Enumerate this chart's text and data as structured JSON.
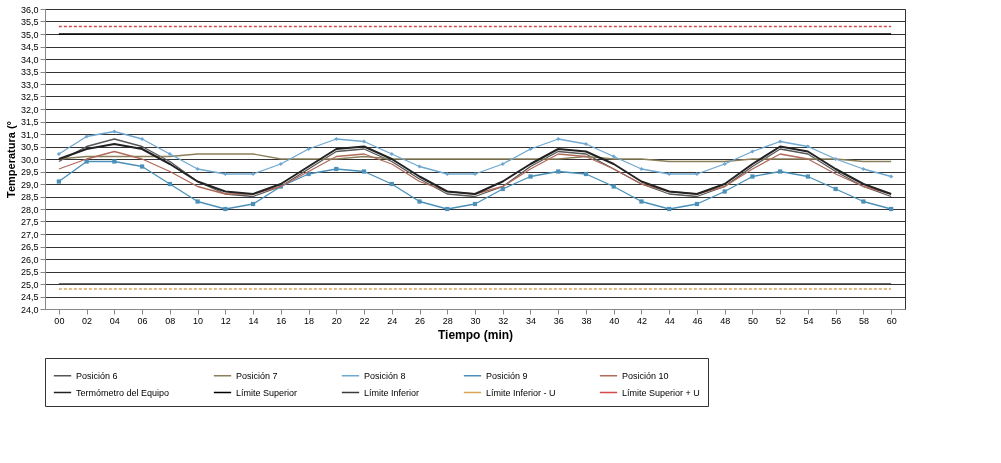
{
  "chart_data": {
    "type": "line",
    "xlabel": "Tiempo (min)",
    "ylabel": "Temperatura (°",
    "categories": [
      "00",
      "02",
      "04",
      "06",
      "08",
      "10",
      "12",
      "14",
      "16",
      "18",
      "20",
      "22",
      "24",
      "26",
      "28",
      "30",
      "32",
      "34",
      "36",
      "38",
      "40",
      "42",
      "44",
      "46",
      "48",
      "50",
      "52",
      "54",
      "56",
      "58",
      "60"
    ],
    "ylim": [
      24.0,
      36.0
    ],
    "yticks": [
      {
        "value": 24.0,
        "label": "24,0"
      },
      {
        "value": 24.5,
        "label": "24,5"
      },
      {
        "value": 25.0,
        "label": "25,0"
      },
      {
        "value": 25.5,
        "label": "25,5"
      },
      {
        "value": 26.0,
        "label": "26,0"
      },
      {
        "value": 26.5,
        "label": "26,5"
      },
      {
        "value": 27.0,
        "label": "27,0"
      },
      {
        "value": 27.5,
        "label": "27,5"
      },
      {
        "value": 28.0,
        "label": "28,0"
      },
      {
        "value": 28.5,
        "label": "28,5"
      },
      {
        "value": 29.0,
        "label": "29,0"
      },
      {
        "value": 29.5,
        "label": "29,5"
      },
      {
        "value": 30.0,
        "label": "30,0"
      },
      {
        "value": 30.5,
        "label": "30,5"
      },
      {
        "value": 31.0,
        "label": "31,0"
      },
      {
        "value": 31.5,
        "label": "31,5"
      },
      {
        "value": 32.0,
        "label": "32,0"
      },
      {
        "value": 32.5,
        "label": "32,5"
      },
      {
        "value": 33.0,
        "label": "33,0"
      },
      {
        "value": 33.5,
        "label": "33,5"
      },
      {
        "value": 34.0,
        "label": "34,0"
      },
      {
        "value": 34.5,
        "label": "34,5"
      },
      {
        "value": 35.0,
        "label": "35,0"
      },
      {
        "value": 35.5,
        "label": "35,5"
      },
      {
        "value": 36.0,
        "label": "36,0"
      }
    ],
    "grid": "y",
    "legend": "bottom",
    "series": [
      {
        "name": "Posición 6",
        "color": "#555555",
        "line_style": "solid",
        "marker": "none",
        "values": [
          29.9,
          30.5,
          30.8,
          30.5,
          29.9,
          29.1,
          28.6,
          28.5,
          28.9,
          29.6,
          30.3,
          30.4,
          29.9,
          29.2,
          28.6,
          28.5,
          28.9,
          29.7,
          30.3,
          30.2,
          29.6,
          29.0,
          28.6,
          28.5,
          28.9,
          29.7,
          30.4,
          30.2,
          29.5,
          28.9,
          28.5
        ]
      },
      {
        "name": "Posición 7",
        "color": "#8a7f5a",
        "line_style": "solid",
        "marker": "none",
        "values": [
          30.0,
          30.1,
          30.1,
          30.1,
          30.1,
          30.2,
          30.2,
          30.2,
          30.0,
          30.0,
          30.0,
          30.1,
          30.0,
          30.0,
          30.0,
          30.0,
          30.0,
          30.0,
          30.0,
          30.1,
          30.0,
          30.0,
          29.9,
          29.9,
          29.9,
          30.0,
          30.0,
          30.0,
          30.0,
          29.9,
          29.9
        ]
      },
      {
        "name": "Posición 8",
        "color": "#6fa8d0",
        "line_style": "solid",
        "marker": "diamond",
        "values": [
          30.2,
          30.9,
          31.1,
          30.8,
          30.2,
          29.6,
          29.4,
          29.4,
          29.8,
          30.4,
          30.8,
          30.7,
          30.2,
          29.7,
          29.4,
          29.4,
          29.8,
          30.4,
          30.8,
          30.6,
          30.1,
          29.6,
          29.4,
          29.4,
          29.8,
          30.3,
          30.7,
          30.5,
          30.0,
          29.6,
          29.3
        ]
      },
      {
        "name": "Posición 9",
        "color": "#4a90b8",
        "line_style": "solid",
        "marker": "square",
        "values": [
          29.1,
          29.9,
          29.9,
          29.7,
          29.0,
          28.3,
          28.0,
          28.2,
          28.9,
          29.4,
          29.6,
          29.5,
          29.0,
          28.3,
          28.0,
          28.2,
          28.8,
          29.3,
          29.5,
          29.4,
          28.9,
          28.3,
          28.0,
          28.2,
          28.7,
          29.3,
          29.5,
          29.3,
          28.8,
          28.3,
          28.0
        ]
      },
      {
        "name": "Posición 10",
        "color": "#b06a5a",
        "line_style": "solid",
        "marker": "none",
        "values": [
          29.6,
          30.0,
          30.3,
          30.0,
          29.5,
          28.9,
          28.6,
          28.6,
          28.9,
          29.5,
          30.1,
          30.2,
          29.8,
          29.1,
          28.7,
          28.6,
          28.9,
          29.6,
          30.2,
          30.1,
          29.6,
          29.0,
          28.7,
          28.6,
          28.9,
          29.6,
          30.2,
          30.0,
          29.4,
          28.9,
          28.6
        ]
      },
      {
        "name": "Termómetro del Equipo",
        "color": "#222222",
        "line_style": "solid",
        "marker": "none",
        "values": [
          30.0,
          30.4,
          30.6,
          30.4,
          29.8,
          29.1,
          28.7,
          28.6,
          29.0,
          29.7,
          30.4,
          30.5,
          30.0,
          29.3,
          28.7,
          28.6,
          29.1,
          29.8,
          30.4,
          30.3,
          29.8,
          29.1,
          28.7,
          28.6,
          29.0,
          29.8,
          30.5,
          30.3,
          29.6,
          29.0,
          28.6
        ]
      },
      {
        "name": "Límite Superior",
        "color": "#000000",
        "line_style": "solid",
        "marker": "none",
        "values": [
          35.0,
          35.0,
          35.0,
          35.0,
          35.0,
          35.0,
          35.0,
          35.0,
          35.0,
          35.0,
          35.0,
          35.0,
          35.0,
          35.0,
          35.0,
          35.0,
          35.0,
          35.0,
          35.0,
          35.0,
          35.0,
          35.0,
          35.0,
          35.0,
          35.0,
          35.0,
          35.0,
          35.0,
          35.0,
          35.0,
          35.0
        ]
      },
      {
        "name": "Límite Inferior",
        "color": "#3a3a3a",
        "line_style": "solid",
        "marker": "none",
        "values": [
          25.0,
          25.0,
          25.0,
          25.0,
          25.0,
          25.0,
          25.0,
          25.0,
          25.0,
          25.0,
          25.0,
          25.0,
          25.0,
          25.0,
          25.0,
          25.0,
          25.0,
          25.0,
          25.0,
          25.0,
          25.0,
          25.0,
          25.0,
          25.0,
          25.0,
          25.0,
          25.0,
          25.0,
          25.0,
          25.0,
          25.0
        ]
      },
      {
        "name": "Límite Inferior - U",
        "color": "#d9a55a",
        "line_style": "dashed",
        "marker": "none",
        "values": [
          24.8,
          24.8,
          24.8,
          24.8,
          24.8,
          24.8,
          24.8,
          24.8,
          24.8,
          24.8,
          24.8,
          24.8,
          24.8,
          24.8,
          24.8,
          24.8,
          24.8,
          24.8,
          24.8,
          24.8,
          24.8,
          24.8,
          24.8,
          24.8,
          24.8,
          24.8,
          24.8,
          24.8,
          24.8,
          24.8,
          24.8
        ]
      },
      {
        "name": "Límite Superior + U",
        "color": "#d24a4a",
        "line_style": "dashed",
        "marker": "none",
        "values": [
          35.3,
          35.3,
          35.3,
          35.3,
          35.3,
          35.3,
          35.3,
          35.3,
          35.3,
          35.3,
          35.3,
          35.3,
          35.3,
          35.3,
          35.3,
          35.3,
          35.3,
          35.3,
          35.3,
          35.3,
          35.3,
          35.3,
          35.3,
          35.3,
          35.3,
          35.3,
          35.3,
          35.3,
          35.3,
          35.3,
          35.3
        ]
      }
    ]
  }
}
